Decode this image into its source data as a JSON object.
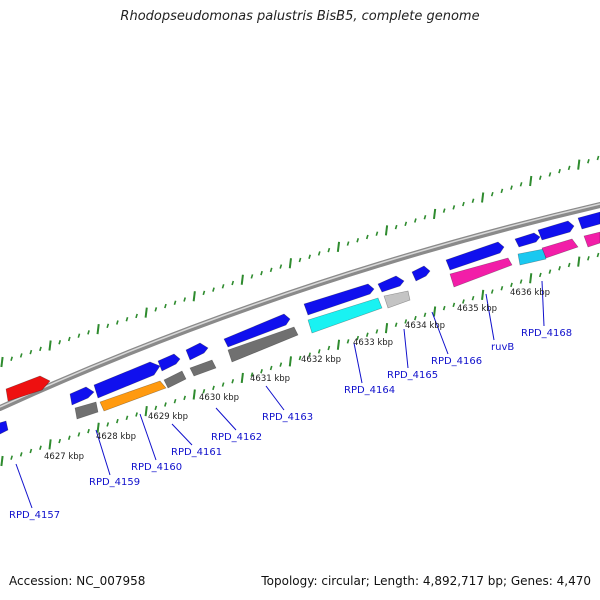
{
  "title": "Rhodopseudomonas palustris BisB5, complete genome",
  "footer": {
    "accession": "Accession: NC_007958",
    "summary": "Topology: circular; Length: 4,892,717 bp; Genes: 4,470"
  },
  "colors": {
    "backbone": "#8a8a8a",
    "tick": "#2e8b2e",
    "gene_forward": "#1010ee",
    "gene_red": "#ee1010",
    "gene_grey": "#707070",
    "gene_lightgrey": "#c4c4c4",
    "gene_orange": "#ff9a10",
    "gene_cyan": "#19f2f2",
    "gene_magenta": "#f21ea8",
    "gene_lightblue": "#1ac8f0",
    "label": "#1010cc"
  },
  "kbp_labels": [
    "4627 kbp",
    "4628 kbp",
    "4629 kbp",
    "4630 kbp",
    "4631 kbp",
    "4632 kbp",
    "4633 kbp",
    "4634 kbp",
    "4635 kbp",
    "4636 kbp"
  ],
  "gene_labels": [
    "RPD_4157",
    "RPD_4159",
    "RPD_4160",
    "RPD_4161",
    "RPD_4162",
    "RPD_4163",
    "RPD_4164",
    "RPD_4165",
    "RPD_4166",
    "ruvB",
    "RPD_4168"
  ]
}
